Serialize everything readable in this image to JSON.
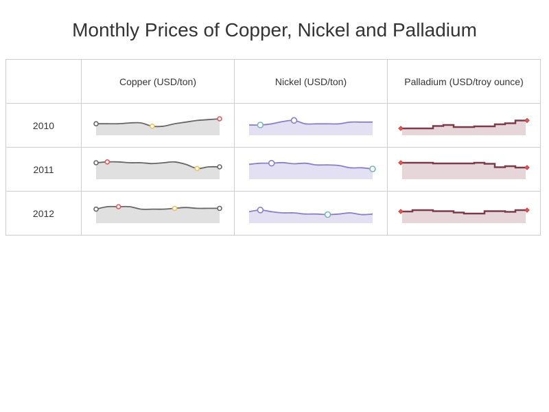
{
  "title": "Monthly Prices of Copper, Nickel and Palladium",
  "columns": [
    {
      "id": "copper",
      "label": "Copper (USD/ton)"
    },
    {
      "id": "nickel",
      "label": "Nickel (USD/ton)"
    },
    {
      "id": "palladium",
      "label": "Palladium (USD/troy ounce)"
    }
  ],
  "rows": [
    {
      "year": "2010"
    },
    {
      "year": "2011"
    },
    {
      "year": "2012"
    }
  ],
  "colors": {
    "copper": {
      "line": "#666666",
      "fill": "#e0e0e0"
    },
    "nickel": {
      "line": "#8a7fc4",
      "fill": "#e2e0f2"
    },
    "palladium": {
      "line": "#7a3b4b",
      "fill": "#e6d6da"
    },
    "high_marker": "#e15759",
    "low_marker": "#f1c15e",
    "nickel_low_marker": "#76b7b2"
  },
  "chart_data": [
    {
      "type": "line",
      "series": "copper",
      "year": "2010",
      "months": 12,
      "values": [
        6.9,
        6.9,
        6.9,
        7.0,
        7.0,
        6.6,
        6.6,
        6.9,
        7.1,
        7.3,
        7.4,
        7.5
      ],
      "ylim": [
        5.5,
        8.0
      ],
      "first_last_markers": true,
      "high_point": 11,
      "low_point": 5
    },
    {
      "type": "line",
      "series": "copper",
      "year": "2011",
      "months": 12,
      "values": [
        7.5,
        7.6,
        7.6,
        7.5,
        7.5,
        7.4,
        7.5,
        7.6,
        7.3,
        6.8,
        7.0,
        7.0
      ],
      "ylim": [
        5.5,
        8.0
      ],
      "first_last_markers": true,
      "high_point": 1,
      "low_point": 9
    },
    {
      "type": "line",
      "series": "copper",
      "year": "2012",
      "months": 12,
      "values": [
        7.2,
        7.5,
        7.5,
        7.5,
        7.2,
        7.2,
        7.2,
        7.3,
        7.4,
        7.3,
        7.3,
        7.3
      ],
      "ylim": [
        5.5,
        8.0
      ],
      "first_last_markers": true,
      "high_point": 2,
      "low_point": 7
    },
    {
      "type": "area",
      "series": "nickel",
      "year": "2010",
      "months": 12,
      "values": [
        19.0,
        19.0,
        20.0,
        22.0,
        23.0,
        20.0,
        20.0,
        20.0,
        20.0,
        21.5,
        21.5,
        21.5
      ],
      "ylim": [
        10.0,
        28.0
      ],
      "high_point": 4,
      "low_point": 1
    },
    {
      "type": "area",
      "series": "nickel",
      "year": "2011",
      "months": 12,
      "values": [
        23.0,
        24.0,
        24.0,
        24.5,
        23.5,
        24.0,
        22.5,
        22.5,
        22.0,
        20.0,
        20.0,
        19.0
      ],
      "ylim": [
        10.0,
        28.0
      ],
      "high_point": 2,
      "low_point": 11
    },
    {
      "type": "area",
      "series": "nickel",
      "year": "2012",
      "months": 12,
      "values": [
        20.0,
        21.5,
        20.0,
        19.0,
        19.0,
        18.0,
        18.0,
        17.5,
        18.0,
        19.0,
        17.5,
        18.0
      ],
      "ylim": [
        10.0,
        28.0
      ],
      "high_point": 1,
      "low_point": 7
    },
    {
      "type": "step",
      "series": "palladium",
      "year": "2010",
      "months": 12,
      "values": [
        450,
        450,
        450,
        520,
        550,
        490,
        490,
        510,
        510,
        570,
        600,
        680
      ],
      "ylim": [
        250,
        850
      ],
      "first_last_markers": true
    },
    {
      "type": "step",
      "series": "palladium",
      "year": "2011",
      "months": 12,
      "values": [
        780,
        780,
        780,
        760,
        760,
        760,
        760,
        780,
        750,
        650,
        680,
        640
      ],
      "ylim": [
        300,
        900
      ],
      "first_last_markers": true
    },
    {
      "type": "step",
      "series": "palladium",
      "year": "2012",
      "months": 12,
      "values": [
        640,
        680,
        680,
        650,
        650,
        610,
        580,
        580,
        650,
        650,
        630,
        680
      ],
      "ylim": [
        300,
        900
      ],
      "first_last_markers": true
    }
  ]
}
